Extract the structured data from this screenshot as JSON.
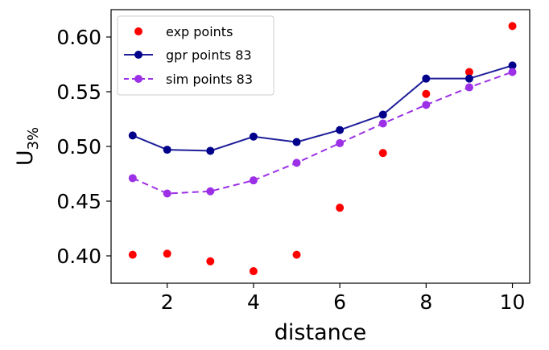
{
  "chart_data": {
    "type": "scatter",
    "xlabel": "distance",
    "ylabel": "U",
    "ylabel_subscript": "3%",
    "xlim": [
      0.7,
      10.4
    ],
    "ylim": [
      0.375,
      0.625
    ],
    "x_ticks": [
      2,
      4,
      6,
      8,
      10
    ],
    "y_ticks": [
      0.4,
      0.45,
      0.5,
      0.55,
      0.6
    ],
    "y_tick_labels": [
      "0.40",
      "0.45",
      "0.50",
      "0.55",
      "0.60"
    ],
    "legend_position": "top-left",
    "grid": false,
    "series": [
      {
        "name": "exp points",
        "style": "markers",
        "color": "#ff0000",
        "x": [
          1.2,
          2,
          3,
          4,
          5,
          6,
          7,
          8,
          9,
          10
        ],
        "values": [
          0.401,
          0.402,
          0.395,
          0.386,
          0.401,
          0.444,
          0.494,
          0.548,
          0.568,
          0.61
        ]
      },
      {
        "name": "gpr points 83",
        "style": "solid-line-markers",
        "color": "#00008b",
        "line_color": "#1f1f9b",
        "x": [
          1.2,
          2,
          3,
          4,
          5,
          6,
          7,
          8,
          9,
          10
        ],
        "values": [
          0.51,
          0.497,
          0.496,
          0.509,
          0.504,
          0.515,
          0.529,
          0.562,
          0.562,
          0.574
        ]
      },
      {
        "name": "sim points 83",
        "style": "dashed-line-markers",
        "color": "#9b30e6",
        "x": [
          1.2,
          2,
          3,
          4,
          5,
          6,
          7,
          8,
          9,
          10
        ],
        "values": [
          0.471,
          0.457,
          0.459,
          0.469,
          0.485,
          0.503,
          0.521,
          0.538,
          0.554,
          0.568
        ]
      }
    ]
  }
}
